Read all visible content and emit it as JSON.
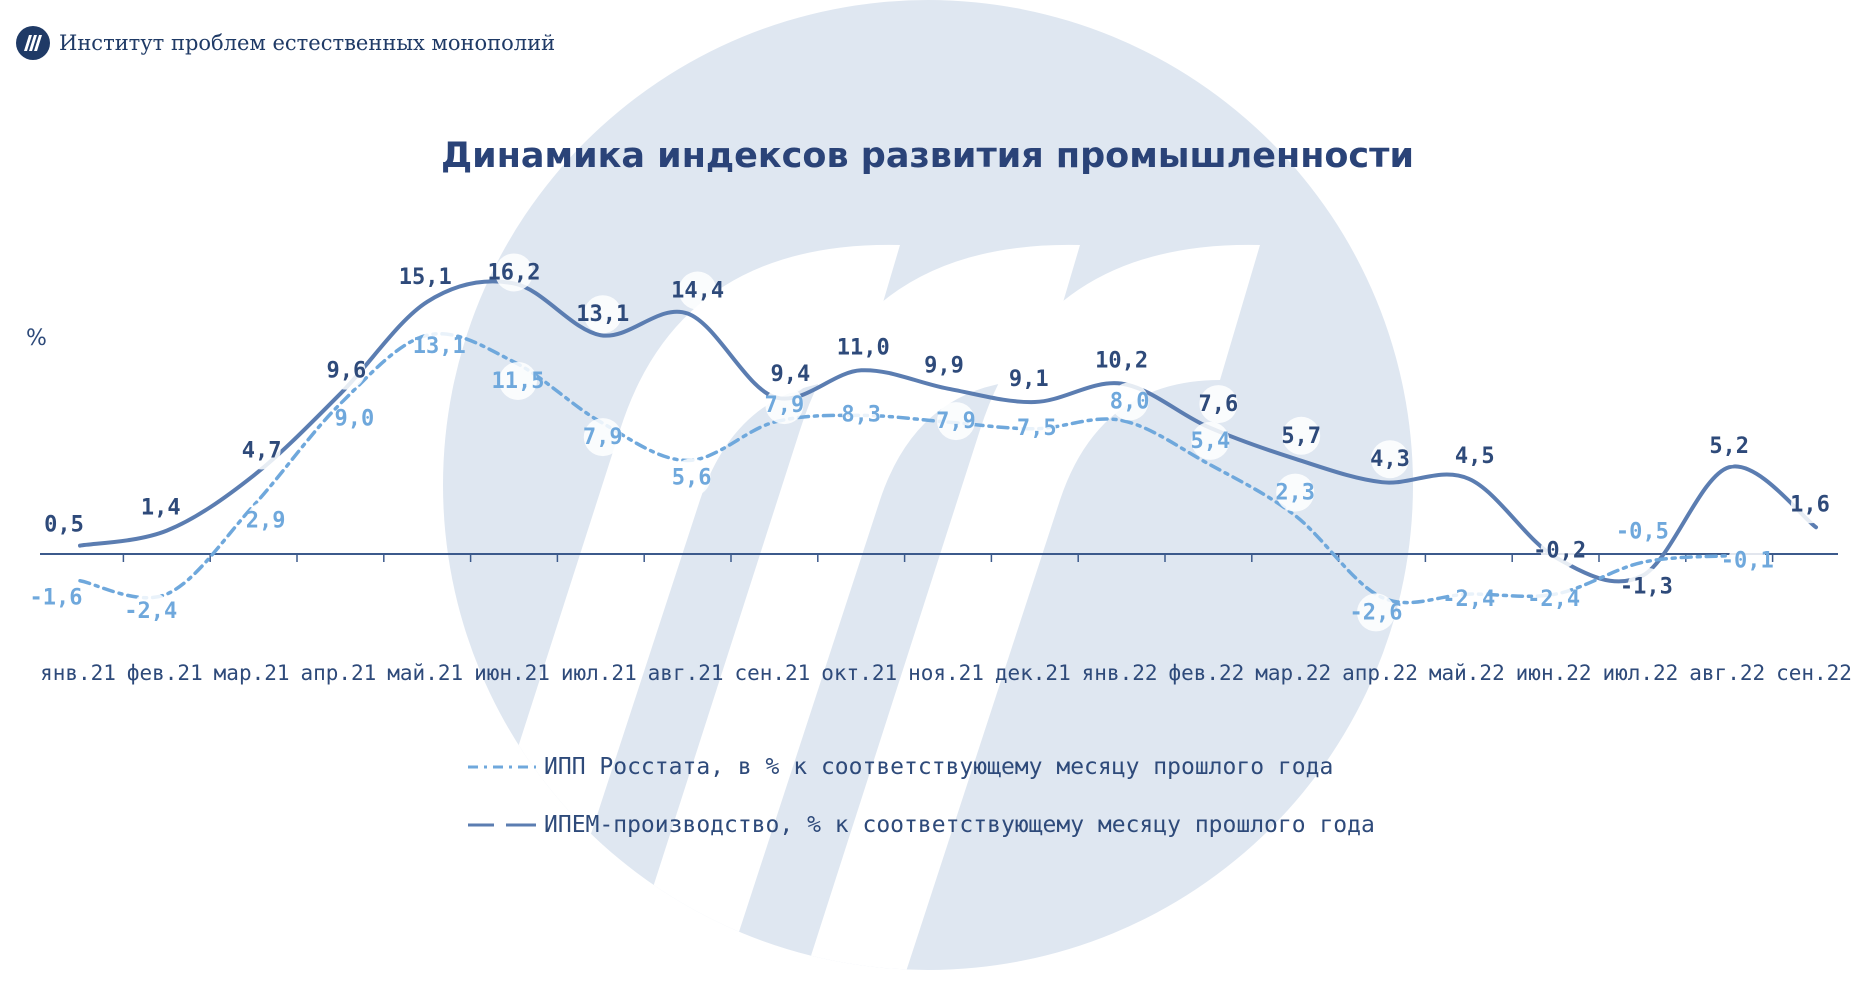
{
  "header": {
    "org_name": "Институт проблем естественных монополий"
  },
  "chart_data": {
    "type": "line",
    "title": "Динамика индексов развития промышленности",
    "ylabel": "%",
    "categories": [
      "янв.21",
      "фев.21",
      "мар.21",
      "апр.21",
      "май.21",
      "июн.21",
      "июл.21",
      "авг.21",
      "сен.21",
      "окт.21",
      "ноя.21",
      "дек.21",
      "янв.22",
      "фев.22",
      "мар.22",
      "апр.22",
      "май.22",
      "июн.22",
      "июл.22",
      "авг.22",
      "сен.22"
    ],
    "series": [
      {
        "name": "ИПП Росстата, в % к соответствующему  месяцу прошлого года",
        "style": "dashed",
        "color": "#6fa8dc",
        "values": [
          -1.6,
          -2.4,
          2.9,
          9.0,
          13.1,
          11.5,
          7.9,
          5.6,
          7.9,
          8.3,
          7.9,
          7.5,
          8.0,
          5.4,
          2.3,
          -2.6,
          -2.4,
          -2.4,
          -0.5,
          -0.1,
          null
        ],
        "labels": [
          "-1,6",
          "-2,4",
          "2,9",
          "9,0",
          "13,1",
          "11,5",
          "7,9",
          "5,6",
          "7,9",
          "8,3",
          "7,9",
          "7,5",
          "8,0",
          "5,4",
          "2,3",
          "-2,6",
          "-2,4",
          "-2,4",
          "-0,5",
          "-0,1",
          ""
        ]
      },
      {
        "name": "ИПЕМ-производство, % к соответствующему  месяцу прошлого года",
        "style": "solid",
        "color": "#5b7db1",
        "values": [
          0.5,
          1.4,
          4.7,
          9.6,
          15.1,
          16.2,
          13.1,
          14.4,
          9.4,
          11.0,
          9.9,
          9.1,
          10.2,
          7.6,
          5.7,
          4.3,
          4.5,
          -0.2,
          -1.3,
          5.2,
          1.6
        ],
        "labels": [
          "0,5",
          "1,4",
          "4,7",
          "9,6",
          "15,1",
          "16,2",
          "13,1",
          "14,4",
          "9,4",
          "11,0",
          "9,9",
          "9,1",
          "10,2",
          "7,6",
          "5,7",
          "4,3",
          "4,5",
          "-0,2",
          "-1,3",
          "5,2",
          "1,6"
        ]
      }
    ],
    "grid": false,
    "legend_position": "bottom"
  },
  "colors": {
    "axis": "#3c5a8c",
    "series_ipp": "#6fa8dc",
    "series_ipem": "#5b7db1",
    "label_ipem": "#2e4a7a",
    "title": "#2a4378",
    "watermark": "#dfe7f1"
  }
}
